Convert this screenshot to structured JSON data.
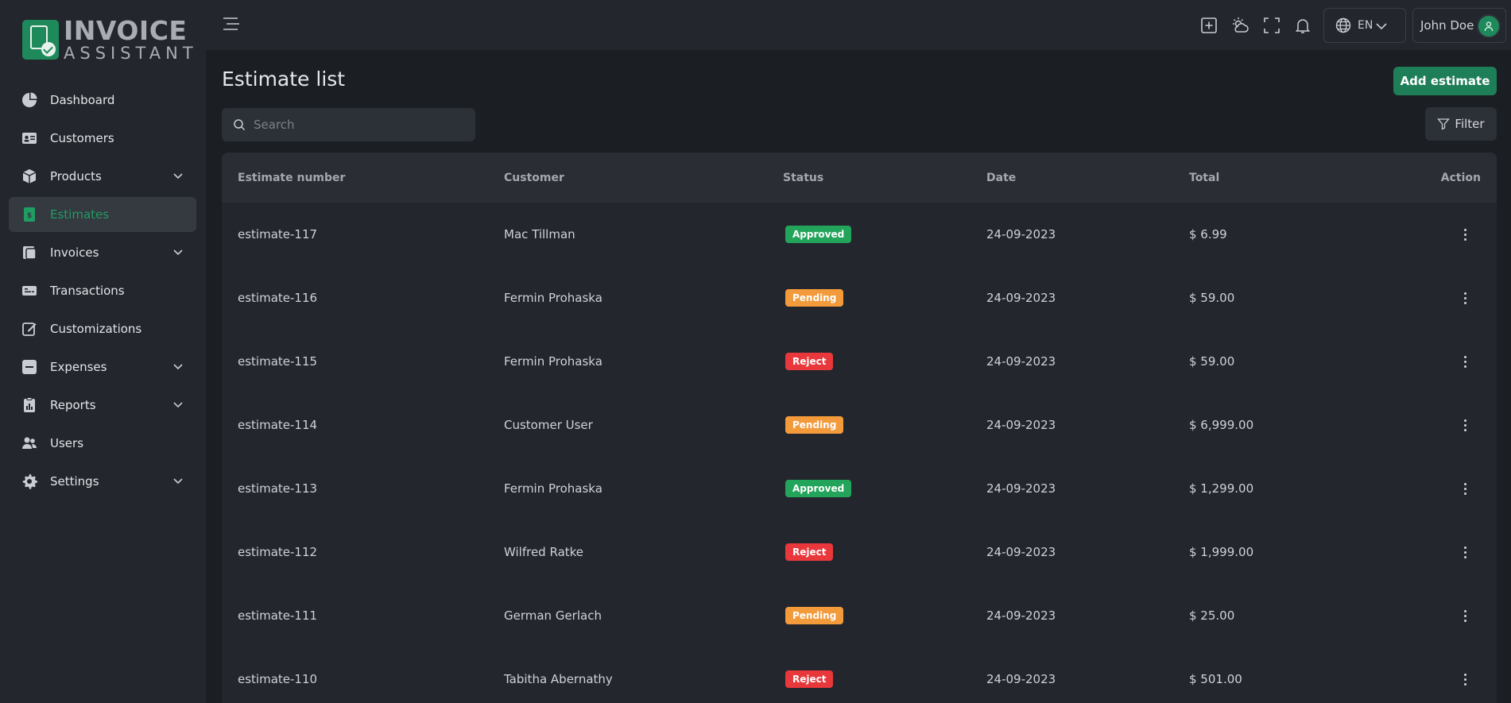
{
  "brand": {
    "line1": "INVOICE",
    "line2": "ASSISTANT"
  },
  "sidebar": {
    "items": [
      {
        "label": "Dashboard",
        "icon": "pie-chart-icon",
        "expandable": false,
        "active": false
      },
      {
        "label": "Customers",
        "icon": "id-card-icon",
        "expandable": false,
        "active": false
      },
      {
        "label": "Products",
        "icon": "box-icon",
        "expandable": true,
        "active": false
      },
      {
        "label": "Estimates",
        "icon": "estimate-icon",
        "expandable": false,
        "active": true
      },
      {
        "label": "Invoices",
        "icon": "invoice-icon",
        "expandable": true,
        "active": false
      },
      {
        "label": "Transactions",
        "icon": "transactions-icon",
        "expandable": false,
        "active": false
      },
      {
        "label": "Customizations",
        "icon": "edit-icon",
        "expandable": false,
        "active": false
      },
      {
        "label": "Expenses",
        "icon": "expenses-icon",
        "expandable": true,
        "active": false
      },
      {
        "label": "Reports",
        "icon": "report-icon",
        "expandable": true,
        "active": false
      },
      {
        "label": "Users",
        "icon": "users-icon",
        "expandable": false,
        "active": false
      },
      {
        "label": "Settings",
        "icon": "gear-icon",
        "expandable": true,
        "active": false
      }
    ]
  },
  "topbar": {
    "language": "EN",
    "user_name": "John Doe"
  },
  "main": {
    "title": "Estimate list",
    "add_button": "Add estimate",
    "search_placeholder": "Search",
    "filter_button": "Filter"
  },
  "table": {
    "headers": {
      "number": "Estimate number",
      "customer": "Customer",
      "status": "Status",
      "date": "Date",
      "total": "Total",
      "action": "Action"
    },
    "rows": [
      {
        "number": "estimate-117",
        "customer": "Mac Tillman",
        "status": "Approved",
        "status_type": "approved",
        "date": "24-09-2023",
        "total": "$ 6.99"
      },
      {
        "number": "estimate-116",
        "customer": "Fermin Prohaska",
        "status": "Pending",
        "status_type": "pending",
        "date": "24-09-2023",
        "total": "$ 59.00"
      },
      {
        "number": "estimate-115",
        "customer": "Fermin Prohaska",
        "status": "Reject",
        "status_type": "reject",
        "date": "24-09-2023",
        "total": "$ 59.00"
      },
      {
        "number": "estimate-114",
        "customer": "Customer User",
        "status": "Pending",
        "status_type": "pending",
        "date": "24-09-2023",
        "total": "$ 6,999.00"
      },
      {
        "number": "estimate-113",
        "customer": "Fermin Prohaska",
        "status": "Approved",
        "status_type": "approved",
        "date": "24-09-2023",
        "total": "$ 1,299.00"
      },
      {
        "number": "estimate-112",
        "customer": "Wilfred Ratke",
        "status": "Reject",
        "status_type": "reject",
        "date": "24-09-2023",
        "total": "$ 1,999.00"
      },
      {
        "number": "estimate-111",
        "customer": "German Gerlach",
        "status": "Pending",
        "status_type": "pending",
        "date": "24-09-2023",
        "total": "$ 25.00"
      },
      {
        "number": "estimate-110",
        "customer": "Tabitha Abernathy",
        "status": "Reject",
        "status_type": "reject",
        "date": "24-09-2023",
        "total": "$ 501.00"
      }
    ]
  },
  "colors": {
    "accent": "#1e8a5c",
    "approved": "#22a55a",
    "pending": "#f39a3b",
    "reject": "#e8383b"
  }
}
